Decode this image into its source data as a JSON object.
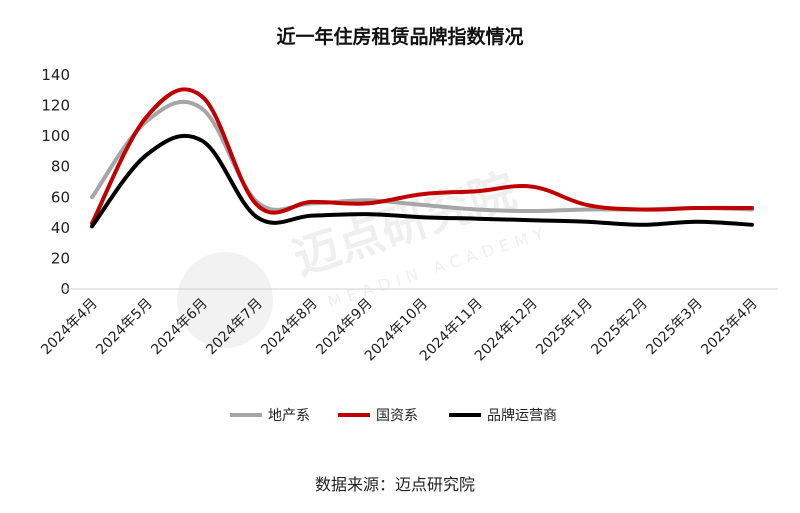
{
  "watermark": {
    "main": "迈点研究院",
    "sub": "MEADIN ACADEMY"
  },
  "source": "数据来源：迈点研究院",
  "chart_data": {
    "type": "line",
    "title": "近一年住房租赁品牌指数情况",
    "categories": [
      "2024年4月",
      "2024年5月",
      "2024年6月",
      "2024年7月",
      "2024年8月",
      "2024年9月",
      "2024年10月",
      "2024年11月",
      "2024年12月",
      "2025年1月",
      "2025年2月",
      "2025年3月",
      "2025年4月"
    ],
    "ylim": [
      0,
      140
    ],
    "yticks": [
      0,
      20,
      40,
      60,
      80,
      100,
      120,
      140
    ],
    "grid": false,
    "legend": "bottom",
    "series": [
      {
        "name": "地产系",
        "color": "#a6a6a6",
        "values": [
          60,
          110,
          118,
          57,
          56,
          58,
          55,
          52,
          51,
          52,
          52,
          53,
          52
        ]
      },
      {
        "name": "国资系",
        "color": "#c00000",
        "values": [
          43,
          113,
          126,
          55,
          57,
          56,
          62,
          64,
          67,
          55,
          52,
          53,
          53
        ]
      },
      {
        "name": "品牌运营商",
        "color": "#000000",
        "values": [
          41,
          88,
          97,
          47,
          48,
          49,
          47,
          46,
          45,
          44,
          42,
          44,
          42
        ]
      }
    ]
  }
}
